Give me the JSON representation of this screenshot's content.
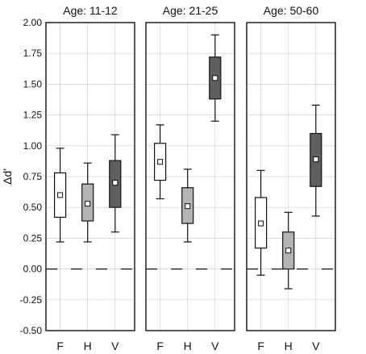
{
  "chart_data": {
    "type": "box",
    "ylabel": "Δd'",
    "ylim": [
      -0.5,
      2.0
    ],
    "yticks": [
      "-0.50",
      "-0.25",
      "0.00",
      "0.25",
      "0.50",
      "0.75",
      "1.00",
      "1.25",
      "1.50",
      "1.75",
      "2.00"
    ],
    "ytick_values": [
      -0.5,
      -0.25,
      0.0,
      0.25,
      0.5,
      0.75,
      1.0,
      1.25,
      1.5,
      1.75,
      2.0
    ],
    "grid": true,
    "reference_line": 0.0,
    "colors": {
      "F": "#ffffff",
      "H": "#b4b4b4",
      "V": "#5f5f5f",
      "stroke": "#111111",
      "grid": "#cfcfcf"
    },
    "panels": [
      {
        "title": "Age: 11-12",
        "categories": [
          "F",
          "H",
          "V"
        ],
        "boxes": [
          {
            "category": "F",
            "whisker_low": 0.22,
            "q1": 0.42,
            "q3": 0.78,
            "whisker_high": 0.98,
            "mean": 0.6
          },
          {
            "category": "H",
            "whisker_low": 0.22,
            "q1": 0.39,
            "q3": 0.69,
            "whisker_high": 0.86,
            "mean": 0.53
          },
          {
            "category": "V",
            "whisker_low": 0.3,
            "q1": 0.5,
            "q3": 0.88,
            "whisker_high": 1.09,
            "mean": 0.7
          }
        ]
      },
      {
        "title": "Age: 21-25",
        "categories": [
          "F",
          "H",
          "V"
        ],
        "boxes": [
          {
            "category": "F",
            "whisker_low": 0.57,
            "q1": 0.72,
            "q3": 1.02,
            "whisker_high": 1.17,
            "mean": 0.87
          },
          {
            "category": "H",
            "whisker_low": 0.22,
            "q1": 0.37,
            "q3": 0.66,
            "whisker_high": 0.81,
            "mean": 0.51
          },
          {
            "category": "V",
            "whisker_low": 1.2,
            "q1": 1.38,
            "q3": 1.72,
            "whisker_high": 1.9,
            "mean": 1.55
          }
        ]
      },
      {
        "title": "Age: 50-60",
        "categories": [
          "F",
          "H",
          "V"
        ],
        "boxes": [
          {
            "category": "F",
            "whisker_low": -0.05,
            "q1": 0.17,
            "q3": 0.58,
            "whisker_high": 0.8,
            "mean": 0.37
          },
          {
            "category": "H",
            "whisker_low": -0.16,
            "q1": 0.0,
            "q3": 0.3,
            "whisker_high": 0.46,
            "mean": 0.15
          },
          {
            "category": "V",
            "whisker_low": 0.43,
            "q1": 0.67,
            "q3": 1.1,
            "whisker_high": 1.33,
            "mean": 0.89
          }
        ]
      }
    ]
  }
}
